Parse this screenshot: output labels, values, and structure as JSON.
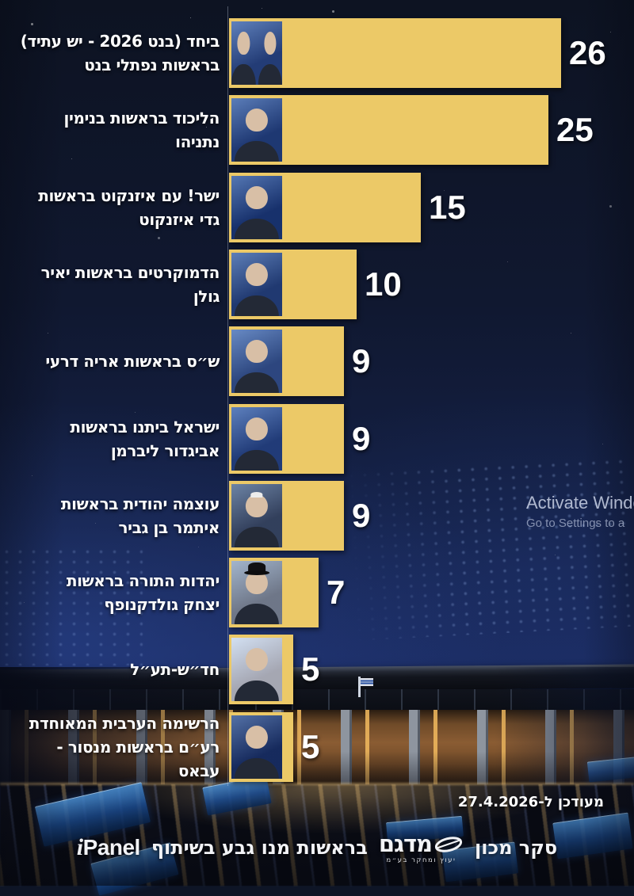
{
  "chart_data": {
    "type": "bar",
    "orientation": "horizontal",
    "unit": "mandates (Knesset seats)",
    "categories": [
      "ביחד (בנט 2026 - יש עתיד) בראשות נפתלי בנט",
      "הליכוד בראשות בנימין נתניהו",
      "ישר! עם איזנקוט בראשות גדי איזנקוט",
      "הדמוקרטים בראשות יאיר גולן",
      "ש״ס בראשות אריה דרעי",
      "ישראל ביתנו בראשות אביגדור ליברמן",
      "עוצמה יהודית בראשות איתמר בן גביר",
      "יהדות התורה בראשות יצחק גולדקנופף",
      "חד״ש-תע״ל",
      "הרשימה הערבית המאוחדת רע״ם בראשות מנסור - עבאס"
    ],
    "values": [
      26,
      25,
      15,
      10,
      9,
      9,
      9,
      7,
      5,
      5
    ],
    "xlim": [
      0,
      26
    ],
    "bar_color": "#ECC967",
    "value_label_color": "#FFFFFF",
    "grid": false,
    "legend": false
  },
  "rows": [
    {
      "label": "ביחד (בנט 2026 - יש עתיד) בראשות נפתלי בנט",
      "label_lines": [
        "ביחד (בנט 2026 - יש עתיד)",
        "בראשות נפתלי בנט"
      ],
      "value": 26,
      "leader_photo": "yair-lapid-naftali-bennett",
      "photo_people": 2,
      "photo_bg": "#2e4f93",
      "photo_variant": "none"
    },
    {
      "label": "הליכוד בראשות בנימין נתניהו",
      "label_lines": [
        "הליכוד בראשות בנימין",
        "נתניהו"
      ],
      "value": 25,
      "leader_photo": "benjamin-netanyahu",
      "photo_people": 1,
      "photo_bg": "#27498e",
      "photo_variant": "none"
    },
    {
      "label": "ישר! עם איזנקוט בראשות גדי איזנקוט",
      "label_lines": [
        "ישר! עם איזנקוט בראשות",
        "גדי איזנקוט"
      ],
      "value": 15,
      "leader_photo": "gadi-eisenkot",
      "photo_people": 1,
      "photo_bg": "#1d3f85",
      "photo_variant": "none"
    },
    {
      "label": "הדמוקרטים בראשות יאיר גולן",
      "label_lines": [
        "הדמוקרטים בראשות יאיר",
        "גולן"
      ],
      "value": 10,
      "leader_photo": "yair-golan",
      "photo_people": 1,
      "photo_bg": "#2a4b8c",
      "photo_variant": "none"
    },
    {
      "label": "ש״ס בראשות אריה דרעי",
      "label_lines": [
        "ש״ס בראשות אריה דרעי"
      ],
      "value": 9,
      "leader_photo": "aryeh-deri",
      "photo_people": 1,
      "photo_bg": "#3c5ea0",
      "photo_variant": "none"
    },
    {
      "label": "ישראל ביתנו בראשות אביגדור ליברמן",
      "label_lines": [
        "ישראל ביתנו בראשות",
        "אביגדור ליברמן"
      ],
      "value": 9,
      "leader_photo": "avigdor-liberman",
      "photo_people": 1,
      "photo_bg": "#2b4e96",
      "photo_variant": "none"
    },
    {
      "label": "עוצמה יהודית בראשות איתמר בן גביר",
      "label_lines": [
        "עוצמה יהודית בראשות",
        "איתמר בן גביר"
      ],
      "value": 9,
      "leader_photo": "itamar-ben-gvir",
      "photo_people": 1,
      "photo_bg": "#44546e",
      "photo_variant": "white-kippah"
    },
    {
      "label": "יהדות התורה בראשות יצחק גולדקנופף",
      "label_lines": [
        "יהדות התורה בראשות",
        "יצחק גולדקנופף"
      ],
      "value": 7,
      "leader_photo": "yitzhak-goldknopf",
      "photo_people": 1,
      "photo_bg": "#9aa3ad",
      "photo_variant": "black-hat"
    },
    {
      "label": "חד״ש-תע״ל",
      "label_lines": [
        "חד״ש-תע״ל"
      ],
      "value": 5,
      "leader_photo": "ayman-odeh",
      "photo_people": 1,
      "photo_bg": "#e8e8ea",
      "photo_variant": "none"
    },
    {
      "label": "הרשימה הערבית המאוחדת רע״ם בראשות מנסור - עבאס",
      "label_lines": [
        "הרשימה הערבית המאוחדת",
        "רע״ם בראשות מנסור -",
        "עבאס"
      ],
      "value": 5,
      "leader_photo": "mansour-abbas",
      "photo_people": 1,
      "photo_bg": "#1c3670",
      "photo_variant": "none"
    }
  ],
  "watermark": {
    "line1": "Activate Windows",
    "line2": "Go to Settings to a"
  },
  "updated_label": "מעודכן ל-27.4.2026",
  "footer": {
    "survey_prefix": "סקר מכון",
    "agency_name": "מדגם",
    "agency_subtitle": "יעוץ ומחקר בע״מ",
    "middle_text": "בראשות מנו גבע בשיתוף",
    "partner_name_i": "i",
    "partner_name_rest": "Panel"
  },
  "colors": {
    "bar": "#ECC967",
    "text": "#FFFFFF",
    "background_top": "#0D1322",
    "background_mid": "#142045",
    "background_deep": "#1A2A5E"
  }
}
